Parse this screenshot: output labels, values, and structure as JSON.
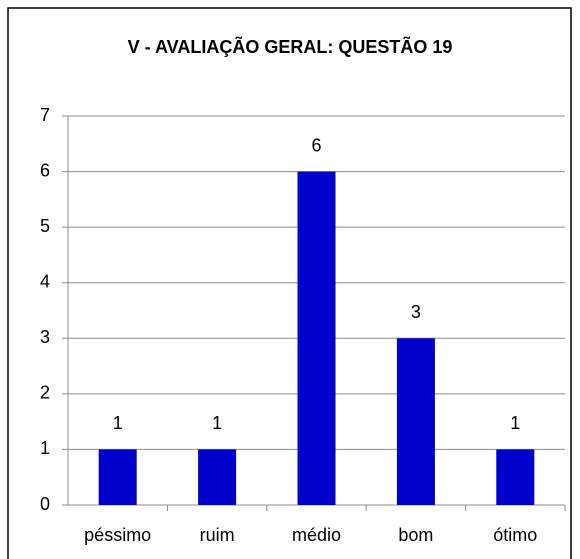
{
  "chart_data": {
    "type": "bar",
    "title": "V -  AVALIAÇÃO GERAL: QUESTÃO 19",
    "categories": [
      "péssimo",
      "ruim",
      "médio",
      "bom",
      "ótimo"
    ],
    "values": [
      1,
      1,
      6,
      3,
      1
    ],
    "color": "#0000cc",
    "ylim": [
      0,
      7
    ],
    "yticks": [
      0,
      1,
      2,
      3,
      4,
      5,
      6,
      7
    ],
    "grid": true
  }
}
